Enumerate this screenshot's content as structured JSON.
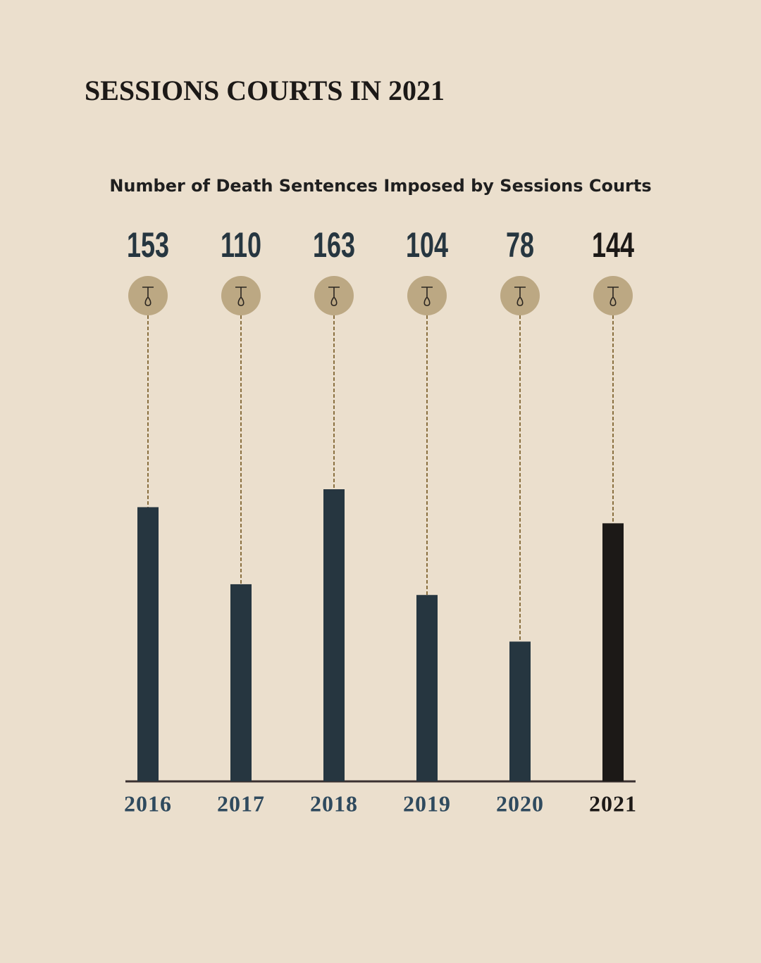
{
  "chart_data": {
    "type": "bar",
    "title": "SESSIONS COURTS IN 2021",
    "subtitle": "Number of Death Sentences Imposed by Sessions Courts",
    "categories": [
      "2016",
      "2017",
      "2018",
      "2019",
      "2020",
      "2021"
    ],
    "values": [
      153,
      110,
      163,
      104,
      78,
      144
    ],
    "colors": [
      "#263640",
      "#263640",
      "#263640",
      "#263640",
      "#263640",
      "#1c1917"
    ]
  }
}
